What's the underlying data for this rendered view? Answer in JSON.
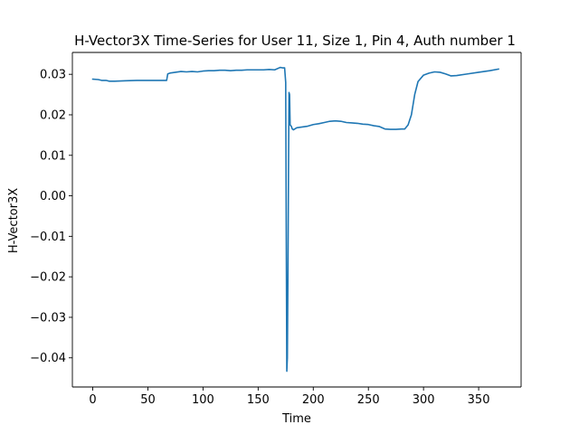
{
  "chart_data": {
    "type": "line",
    "title": "H-Vector3X Time-Series for User 11, Size 1, Pin 4, Auth number 1",
    "xlabel": "Time",
    "ylabel": "H-Vector3X",
    "xlim": [
      -18.5,
      388.5
    ],
    "ylim": [
      -0.0472,
      0.0354
    ],
    "grid": false,
    "legend": "none",
    "line_color": "#1f77b4",
    "x_ticks": [
      0,
      50,
      100,
      150,
      200,
      250,
      300,
      350
    ],
    "y_ticks": [
      -0.04,
      -0.03,
      -0.02,
      -0.01,
      0.0,
      0.01,
      0.02,
      0.03
    ],
    "x_tick_labels": [
      "0",
      "50",
      "100",
      "150",
      "200",
      "250",
      "300",
      "350"
    ],
    "y_tick_labels": [
      "−0.04",
      "−0.03",
      "−0.02",
      "−0.01",
      "0.00",
      "0.01",
      "0.02",
      "0.03"
    ],
    "series": [
      {
        "x": [
          0,
          5,
          8,
          12,
          15,
          20,
          30,
          40,
          50,
          60,
          67,
          68,
          70,
          75,
          80,
          85,
          90,
          95,
          100,
          105,
          110,
          115,
          120,
          125,
          130,
          135,
          140,
          145,
          150,
          155,
          160,
          165,
          170,
          172,
          174,
          175,
          175.5,
          176,
          176.5,
          177,
          177.5,
          178,
          178.5,
          179,
          180,
          181,
          182,
          185,
          190,
          195,
          200,
          205,
          210,
          215,
          220,
          225,
          230,
          235,
          240,
          245,
          250,
          255,
          260,
          265,
          270,
          275,
          280,
          283,
          286,
          289,
          292,
          295,
          300,
          305,
          310,
          315,
          320,
          325,
          330,
          340,
          350,
          360,
          368
        ],
        "y": [
          0.0288,
          0.0287,
          0.0285,
          0.0285,
          0.0283,
          0.0283,
          0.0284,
          0.0285,
          0.0285,
          0.0285,
          0.0285,
          0.0301,
          0.0303,
          0.0305,
          0.0307,
          0.0306,
          0.0307,
          0.0306,
          0.0308,
          0.0309,
          0.0309,
          0.031,
          0.031,
          0.0309,
          0.031,
          0.031,
          0.0311,
          0.0311,
          0.0311,
          0.0311,
          0.0312,
          0.0311,
          0.0317,
          0.0316,
          0.0316,
          0.028,
          -0.01,
          -0.0433,
          -0.04,
          -0.02,
          0.005,
          0.0255,
          0.025,
          0.0175,
          0.0172,
          0.0165,
          0.0163,
          0.0168,
          0.017,
          0.0172,
          0.0176,
          0.0178,
          0.0181,
          0.0184,
          0.0185,
          0.0184,
          0.0181,
          0.018,
          0.0179,
          0.0177,
          0.0176,
          0.0173,
          0.0171,
          0.0165,
          0.0164,
          0.0164,
          0.0165,
          0.0165,
          0.0175,
          0.02,
          0.025,
          0.0282,
          0.0298,
          0.0303,
          0.0306,
          0.0305,
          0.0301,
          0.0296,
          0.0297,
          0.0301,
          0.0305,
          0.0309,
          0.0313
        ]
      }
    ]
  }
}
